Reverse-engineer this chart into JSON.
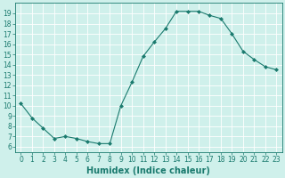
{
  "x": [
    0,
    1,
    2,
    3,
    4,
    5,
    6,
    7,
    8,
    9,
    10,
    11,
    12,
    13,
    14,
    15,
    16,
    17,
    18,
    19,
    20,
    21,
    22,
    23
  ],
  "y": [
    10.2,
    8.8,
    7.8,
    6.8,
    7.0,
    6.8,
    6.5,
    6.3,
    6.3,
    10.0,
    12.3,
    14.8,
    16.2,
    17.5,
    19.2,
    19.2,
    19.2,
    18.8,
    18.5,
    17.0,
    15.3,
    14.5,
    13.8,
    13.5
  ],
  "line_color": "#1a7a6e",
  "marker": "D",
  "marker_size": 2,
  "bg_color": "#cff0eb",
  "grid_color": "#ffffff",
  "xlabel": "Humidex (Indice chaleur)",
  "ylim": [
    5.5,
    20.0
  ],
  "xlim": [
    -0.5,
    23.5
  ],
  "yticks": [
    6,
    7,
    8,
    9,
    10,
    11,
    12,
    13,
    14,
    15,
    16,
    17,
    18,
    19
  ],
  "xticks": [
    0,
    1,
    2,
    3,
    4,
    5,
    6,
    7,
    8,
    9,
    10,
    11,
    12,
    13,
    14,
    15,
    16,
    17,
    18,
    19,
    20,
    21,
    22,
    23
  ],
  "tick_label_fontsize": 5.5,
  "xlabel_fontsize": 7,
  "axis_color": "#1a7a6e",
  "linewidth": 0.8
}
